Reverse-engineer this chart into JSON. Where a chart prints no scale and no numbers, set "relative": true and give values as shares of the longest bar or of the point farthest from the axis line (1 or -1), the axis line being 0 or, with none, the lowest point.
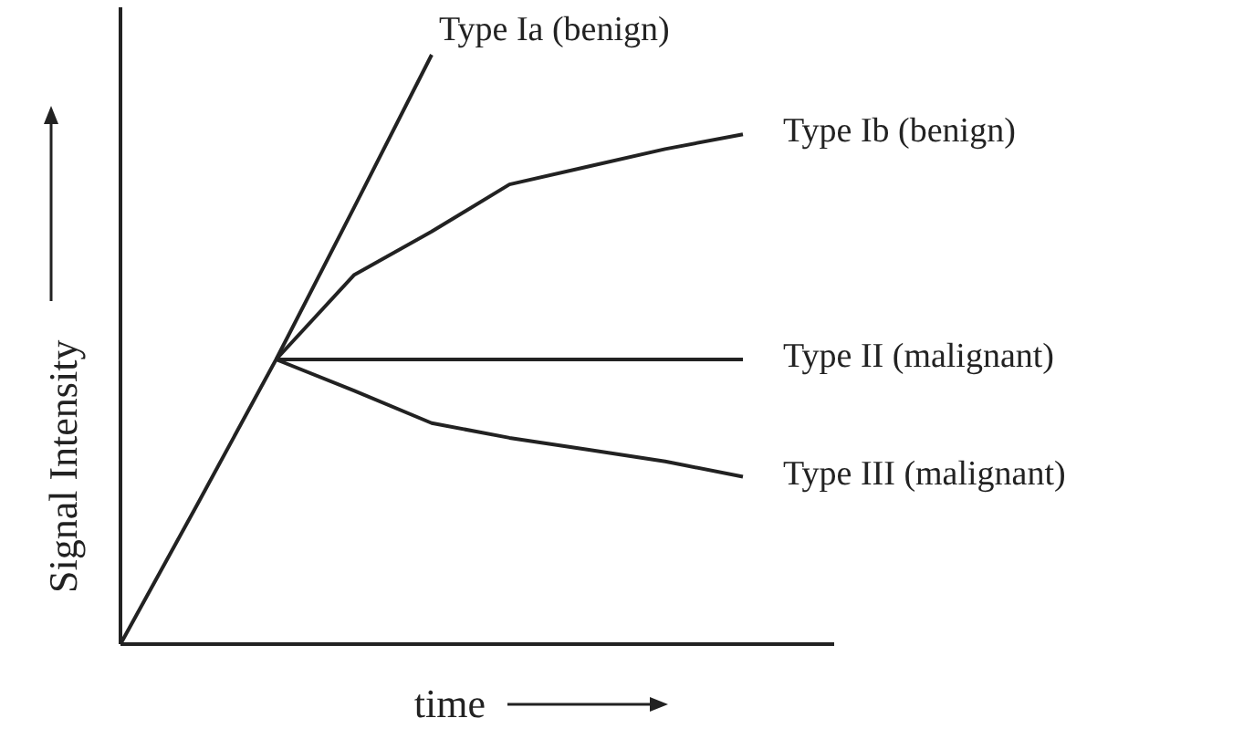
{
  "chart_data": {
    "type": "line",
    "relative": true,
    "xlabel": "time",
    "ylabel": "Signal Intensity",
    "marker": "none",
    "line_style": "solid",
    "categories": [
      null,
      null,
      null,
      null,
      null,
      null,
      null,
      null,
      null
    ],
    "series": [
      {
        "name": "Type Ia (benign)",
        "color": "#222222",
        "values": [
          0,
          0.24,
          0.483,
          0.74,
          1,
          null,
          null,
          null,
          null
        ]
      },
      {
        "name": "Type Ib (benign)",
        "color": "#222222",
        "values": [
          null,
          null,
          0.483,
          0.626,
          0.7,
          0.78,
          0.81,
          0.84,
          0.865
        ]
      },
      {
        "name": "Type II (malignant)",
        "color": "#222222",
        "values": [
          null,
          null,
          0.483,
          0.483,
          0.483,
          0.483,
          0.483,
          0.483,
          0.483
        ]
      },
      {
        "name": "Type III (malignant)",
        "color": "#222222",
        "values": [
          null,
          null,
          0.483,
          0.43,
          0.375,
          0.35,
          0.33,
          0.31,
          0.284
        ]
      }
    ]
  }
}
